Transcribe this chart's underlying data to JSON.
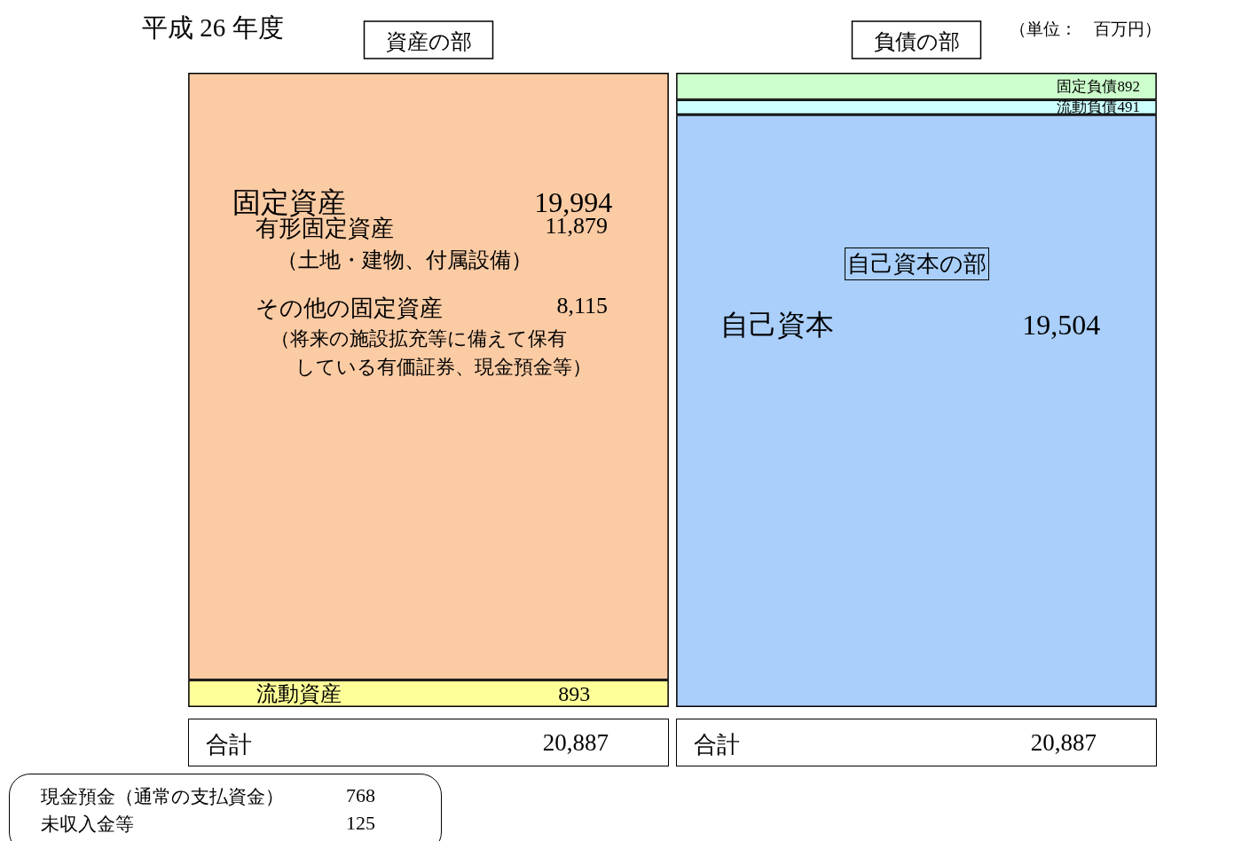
{
  "chart_data": {
    "type": "bar",
    "stacked": true,
    "title": "平成 26 年度",
    "subtitle": "（単位：　百万円）",
    "categories": [
      "資産の部",
      "負債の部"
    ],
    "series": [
      {
        "name": "流動資産",
        "color": "#ffff99",
        "values": [
          893,
          null
        ],
        "value_labels": [
          "893",
          null
        ]
      },
      {
        "name": "固定資産",
        "color": "#fbcba4",
        "values": [
          19994,
          null
        ],
        "value_labels": [
          "19,994",
          null
        ]
      },
      {
        "name": "自己資本",
        "color": "#a9cffa",
        "values": [
          null,
          19504
        ],
        "value_labels": [
          null,
          "19,504"
        ]
      },
      {
        "name": "流動負債",
        "color": "#ccffff",
        "values": [
          null,
          491
        ],
        "value_labels": [
          null,
          "491"
        ]
      },
      {
        "name": "固定負債",
        "color": "#ccffcc",
        "values": [
          null,
          892
        ],
        "value_labels": [
          null,
          "892"
        ]
      }
    ],
    "totals": [
      "20,887",
      "20,887"
    ],
    "legend": false,
    "grid": false,
    "annotations": [
      "有形固定資産",
      "11,879",
      "（土地・建物、付属設備）",
      "その他の固定資産",
      "8,115",
      "（将来の施設拡充等に備えて保有",
      "している有価証券、現金預金等）",
      "自己資本の部",
      "合計",
      "合計",
      "現金預金（通常の支払資金）　768",
      "未収入金等　125"
    ]
  }
}
